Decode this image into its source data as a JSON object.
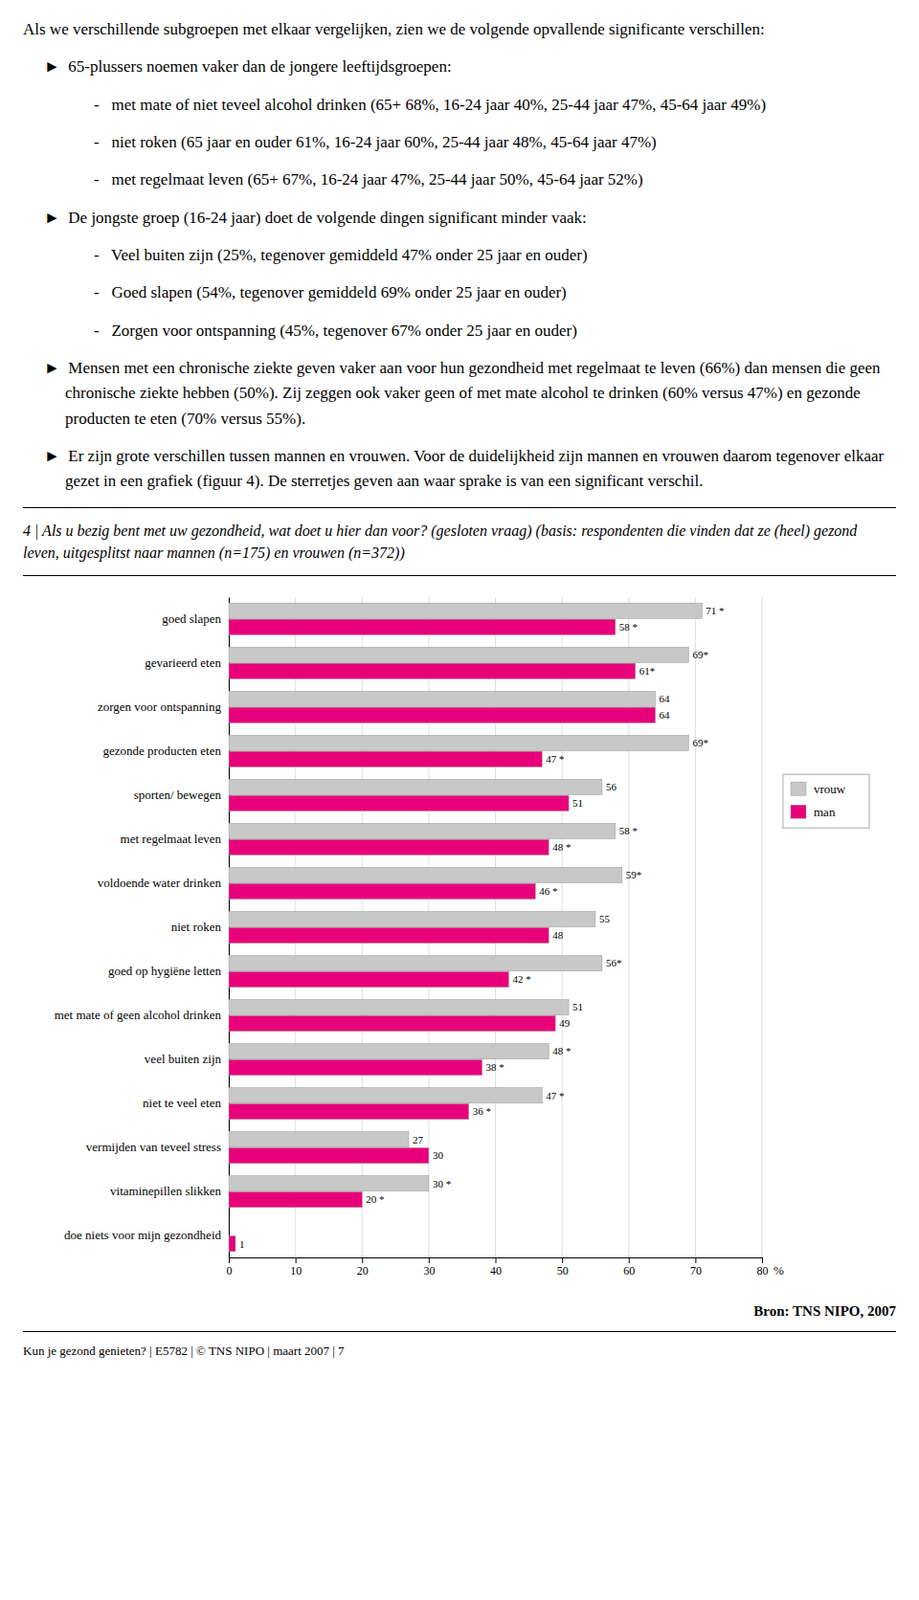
{
  "chart_data": {
    "type": "bar",
    "orientation": "horizontal",
    "annotations": [
      "Als we verschillende subgroepen met elkaar vergelijken, zien we de volgende opvallende significante verschillen:",
      "►  65-plussers noemen vaker dan de jongere leeftijdsgroepen:",
      "-   met mate of niet teveel alcohol drinken (65+ 68%, 16-24 jaar 40%, 25-44 jaar 47%, 45-64 jaar 49%)",
      "-   niet roken (65 jaar en ouder 61%, 16-24 jaar 60%, 25-44 jaar 48%, 45-64 jaar 47%)",
      "-   met regelmaat leven (65+ 67%, 16-24 jaar 47%, 25-44 jaar 50%, 45-64 jaar 52%)",
      "►  De jongste groep (16-24 jaar) doet de volgende dingen significant minder vaak:",
      "-   Veel buiten zijn (25%, tegenover gemiddeld 47% onder 25 jaar en ouder)",
      "-   Goed slapen (54%, tegenover gemiddeld 69% onder 25 jaar en ouder)",
      "-   Zorgen voor ontspanning (45%, tegenover 67% onder 25 jaar en ouder)",
      "►  Mensen met een chronische ziekte geven vaker aan voor hun gezondheid met regelmaat te leven (66%) dan mensen die geen chronische ziekte hebben (50%). Zij zeggen ook vaker geen of met mate alcohol te drinken (60% versus 47%) en gezonde producten te eten (70% versus 55%).",
      "►  Er zijn grote verschillen tussen mannen en vrouwen. Voor de duidelijkheid zijn mannen en vrouwen daarom tegenover elkaar gezet in een grafiek (figuur 4). De sterretjes geven aan waar sprake is van een significant verschil."
    ],
    "title": "4 | Als u bezig bent met uw gezondheid, wat doet u hier dan voor? (gesloten vraag) (basis: respondenten die vinden dat ze (heel) gezond leven, uitgesplitst naar mannen (n=175) en vrouwen (n=372))",
    "categories": [
      "goed slapen",
      "gevarieerd eten",
      "zorgen voor ontspanning",
      "gezonde producten eten",
      "sporten/ bewegen",
      "met regelmaat leven",
      "voldoende water drinken",
      "niet roken",
      "goed op hygiëne letten",
      "met mate of geen alcohol drinken",
      "veel buiten zijn",
      "niet te veel eten",
      "vermijden van teveel stress",
      "vitaminepillen slikken",
      "doe niets voor mijn gezondheid"
    ],
    "series": [
      {
        "name": "vrouw",
        "color": "#c8c8c8",
        "values": [
          71,
          69,
          64,
          69,
          56,
          58,
          59,
          55,
          56,
          51,
          48,
          47,
          27,
          30,
          null
        ],
        "value_labels": [
          "71 *",
          "69*",
          "64",
          "69*",
          "56",
          "58 *",
          "59*",
          "55",
          "56*",
          "51",
          "48 *",
          "47 *",
          "27",
          "30 *",
          null
        ]
      },
      {
        "name": "man",
        "color": "#e8007a",
        "values": [
          58,
          61,
          64,
          47,
          51,
          48,
          46,
          48,
          42,
          49,
          38,
          36,
          30,
          20,
          1
        ],
        "value_labels": [
          "58 *",
          "61*",
          "64",
          "47 *",
          "51",
          "48 *",
          "46 *",
          "48",
          "42 *",
          "49",
          "38 *",
          "36 *",
          "30",
          "20 *",
          "1"
        ]
      }
    ],
    "xlabel": "%",
    "xlim": [
      0,
      80
    ],
    "xticks": [
      0,
      10,
      20,
      30,
      40,
      50,
      60,
      70,
      80
    ],
    "grid": true,
    "legend": "right",
    "data_labels": true,
    "source": "Bron: TNS NIPO, 2007",
    "footer": "Kun je gezond genieten? | E5782 | © TNS NIPO | maart 2007 | 7"
  }
}
